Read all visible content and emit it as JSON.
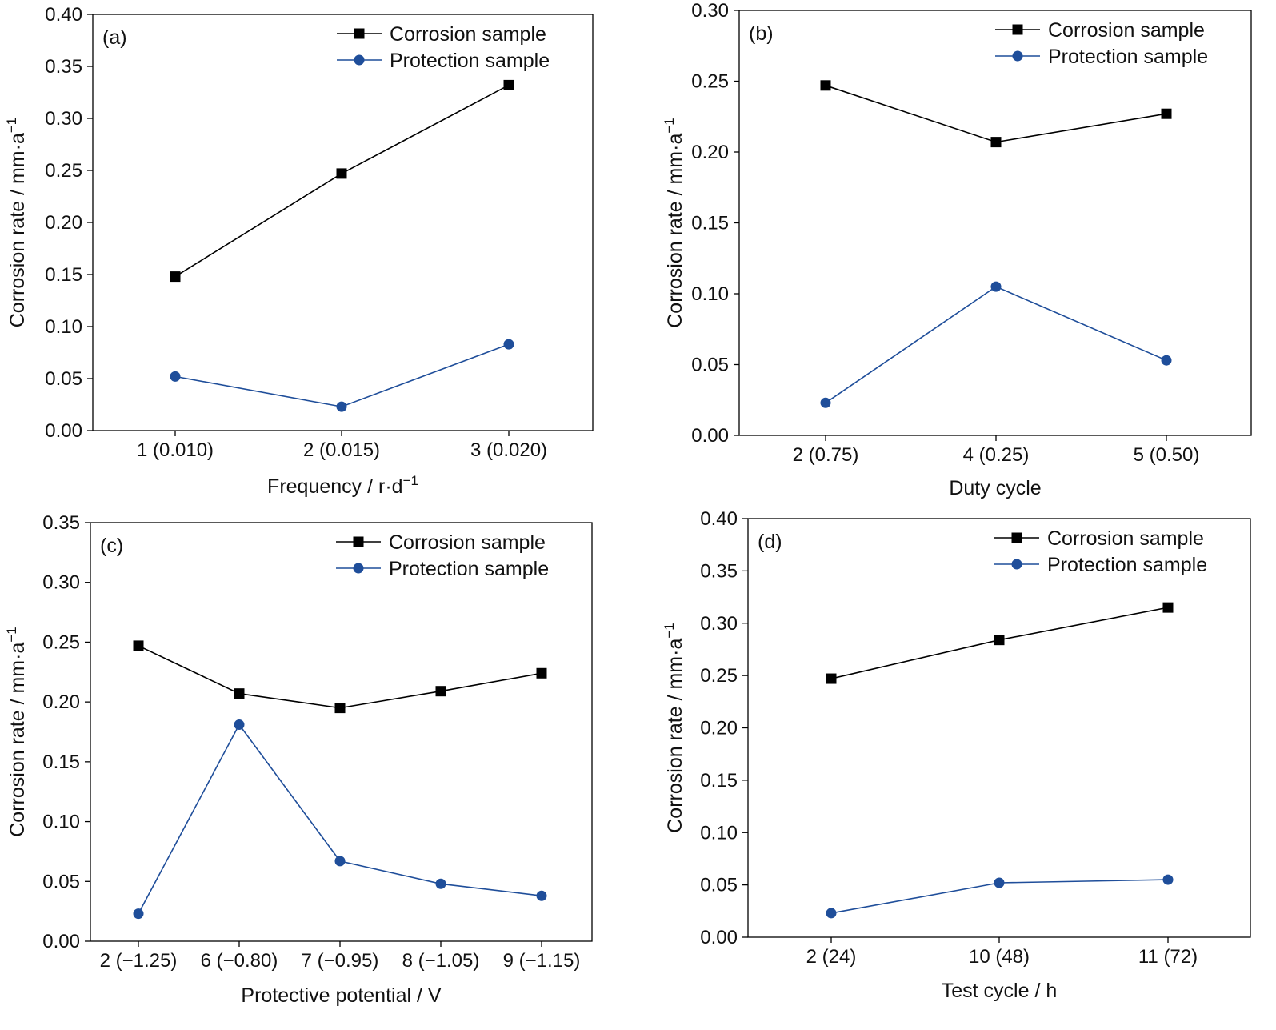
{
  "colors": {
    "corrosion": "#000000",
    "protection": "#1f4e9a",
    "axis": "#000000"
  },
  "chart_data": [
    {
      "type": "line",
      "panel_label": "(a)",
      "categories": [
        "1 (0.010)",
        "2 (0.015)",
        "3 (0.020)"
      ],
      "xlabel": "Frequency / r·d",
      "xlabel_sup": "−1",
      "ylabel": "Corrosion rate / mm·a",
      "ylabel_sup": "−1",
      "ylim": [
        0,
        0.4
      ],
      "yticks": [
        "0.00",
        "0.05",
        "0.10",
        "0.15",
        "0.20",
        "0.25",
        "0.30",
        "0.35",
        "0.40"
      ],
      "legend_position": "top-right",
      "series": [
        {
          "name": "Corrosion sample",
          "marker": "square",
          "values": [
            0.148,
            0.247,
            0.332
          ]
        },
        {
          "name": "Protection sample",
          "marker": "circle",
          "values": [
            0.052,
            0.023,
            0.083
          ]
        }
      ]
    },
    {
      "type": "line",
      "panel_label": "(b)",
      "categories": [
        "2 (0.75)",
        "4 (0.25)",
        "5 (0.50)"
      ],
      "xlabel": "Duty cycle",
      "xlabel_sup": "",
      "ylabel": "Corrosion rate / mm·a",
      "ylabel_sup": "−1",
      "ylim": [
        0,
        0.3
      ],
      "yticks": [
        "0.00",
        "0.05",
        "0.10",
        "0.15",
        "0.20",
        "0.25",
        "0.30"
      ],
      "legend_position": "top-right",
      "series": [
        {
          "name": "Corrosion sample",
          "marker": "square",
          "values": [
            0.247,
            0.207,
            0.227
          ]
        },
        {
          "name": "Protection sample",
          "marker": "circle",
          "values": [
            0.023,
            0.105,
            0.053
          ]
        }
      ]
    },
    {
      "type": "line",
      "panel_label": "(c)",
      "categories": [
        "2 (−1.25)",
        "6 (−0.80)",
        "7 (−0.95)",
        "8 (−1.05)",
        "9 (−1.15)"
      ],
      "xlabel": "Protective potential / V",
      "xlabel_sup": "",
      "ylabel": "Corrosion rate / mm·a",
      "ylabel_sup": "−1",
      "ylim": [
        0,
        0.35
      ],
      "yticks": [
        "0.00",
        "0.05",
        "0.10",
        "0.15",
        "0.20",
        "0.25",
        "0.30",
        "0.35"
      ],
      "legend_position": "top-right",
      "series": [
        {
          "name": "Corrosion sample",
          "marker": "square",
          "values": [
            0.247,
            0.207,
            0.195,
            0.209,
            0.224
          ]
        },
        {
          "name": "Protection sample",
          "marker": "circle",
          "values": [
            0.023,
            0.181,
            0.067,
            0.048,
            0.038
          ]
        }
      ]
    },
    {
      "type": "line",
      "panel_label": "(d)",
      "categories": [
        "2 (24)",
        "10 (48)",
        "11 (72)"
      ],
      "xlabel": "Test cycle / h",
      "xlabel_sup": "",
      "ylabel": "Corrosion rate / mm·a",
      "ylabel_sup": "−1",
      "ylim": [
        0,
        0.4
      ],
      "yticks": [
        "0.00",
        "0.05",
        "0.10",
        "0.15",
        "0.20",
        "0.25",
        "0.30",
        "0.35",
        "0.40"
      ],
      "legend_position": "top-right",
      "series": [
        {
          "name": "Corrosion sample",
          "marker": "square",
          "values": [
            0.247,
            0.284,
            0.315
          ]
        },
        {
          "name": "Protection sample",
          "marker": "circle",
          "values": [
            0.023,
            0.052,
            0.055
          ]
        }
      ]
    }
  ]
}
